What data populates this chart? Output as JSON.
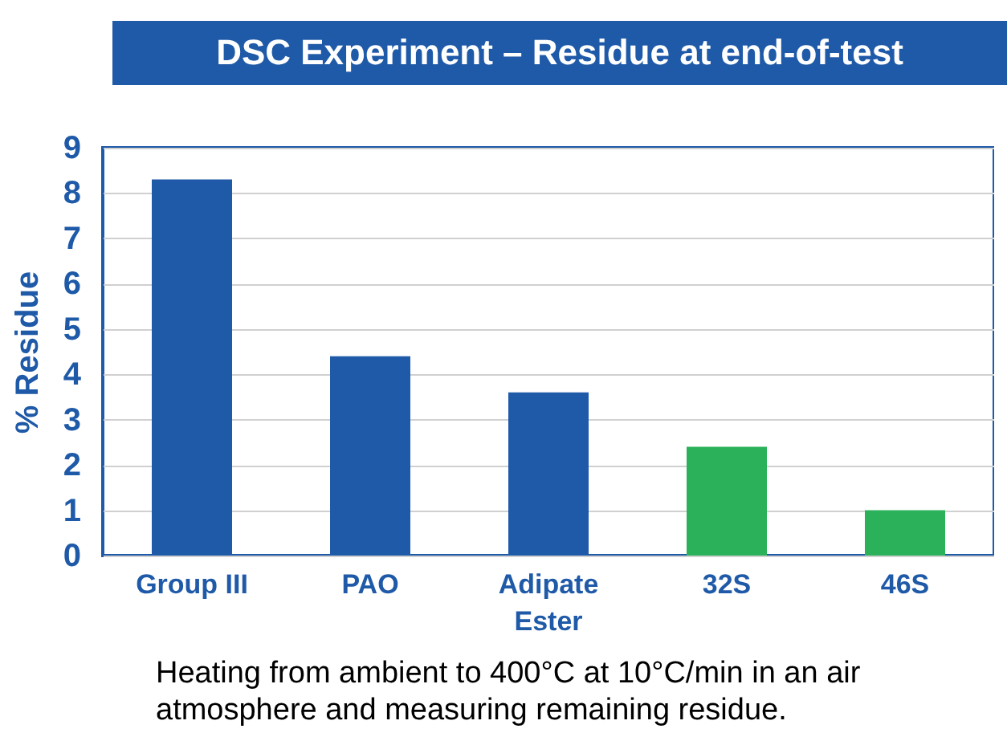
{
  "chart_data": {
    "type": "bar",
    "title": "DSC Experiment – Residue at end-of-test",
    "ylabel": "% Residue",
    "categories": [
      "Group III",
      "PAO",
      "Adipate Ester",
      "32S",
      "46S"
    ],
    "values": [
      8.3,
      4.4,
      3.6,
      2.4,
      1.0
    ],
    "colors": [
      "#1f5aa8",
      "#1f5aa8",
      "#1f5aa8",
      "#2bb15a",
      "#2bb15a"
    ],
    "ylim": [
      0,
      9
    ],
    "yticks": [
      0,
      1,
      2,
      3,
      4,
      5,
      6,
      7,
      8,
      9
    ],
    "grid": "y",
    "annotations": [
      "Heating from ambient to 400°C at 10°C/min in an air atmosphere and measuring remaining residue."
    ]
  }
}
